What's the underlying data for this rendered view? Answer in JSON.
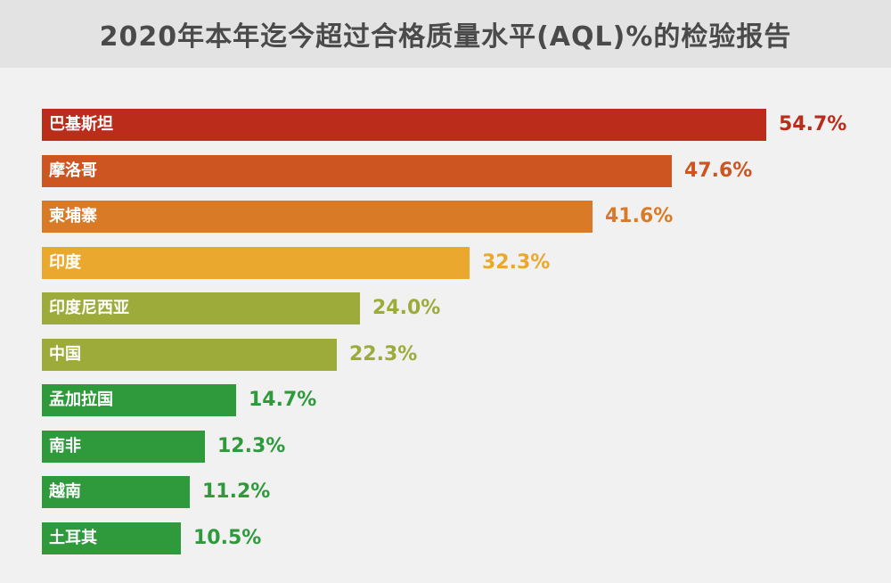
{
  "title": "2020年本年迄今超过合格质量水平(AQL)%的检验报告",
  "chart_data": {
    "type": "bar",
    "orientation": "horizontal",
    "title": "2020年本年迄今超过合格质量水平(AQL)%的检验报告",
    "categories": [
      "巴基斯坦",
      "摩洛哥",
      "柬埔寨",
      "印度",
      "印度尼西亚",
      "中国",
      "孟加拉国",
      "南非",
      "越南",
      "土耳其"
    ],
    "values": [
      54.7,
      47.6,
      41.6,
      32.3,
      24.0,
      22.3,
      14.7,
      12.3,
      11.2,
      10.5
    ],
    "value_labels": [
      "54.7%",
      "47.6%",
      "41.6%",
      "32.3%",
      "24.0%",
      "22.3%",
      "14.7%",
      "12.3%",
      "11.2%",
      "10.5%"
    ],
    "colors": [
      "#bb2c1b",
      "#cc5522",
      "#d97a27",
      "#eaa82e",
      "#9dab3b",
      "#9dab3b",
      "#2e9a3c",
      "#2e9a3c",
      "#2e9a3c",
      "#2e9a3c"
    ],
    "label_colors": [
      "#bb2c1b",
      "#cc5522",
      "#d97a27",
      "#eaa82e",
      "#9dab3b",
      "#9dab3b",
      "#2e9a3c",
      "#2e9a3c",
      "#2e9a3c",
      "#2e9a3c"
    ],
    "xlim": [
      0,
      54.7
    ],
    "grid": false,
    "legend": "none"
  }
}
